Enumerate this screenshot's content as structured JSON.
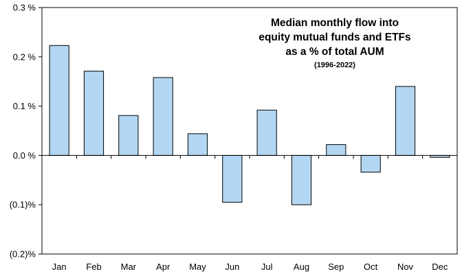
{
  "chart_data": {
    "type": "bar",
    "title_lines": [
      "Median monthly flow into",
      "equity mutual funds and ETFs",
      "as a % of total AUM"
    ],
    "subtitle": "(1996-2022)",
    "categories": [
      "Jan",
      "Feb",
      "Mar",
      "Apr",
      "May",
      "Jun",
      "Jul",
      "Aug",
      "Sep",
      "Oct",
      "Nov",
      "Dec"
    ],
    "values": [
      0.223,
      0.171,
      0.081,
      0.158,
      0.044,
      -0.095,
      0.092,
      -0.1,
      0.022,
      -0.034,
      0.14,
      -0.004
    ],
    "ylim": [
      -0.2,
      0.3
    ],
    "y_ticks": [
      0.3,
      0.2,
      0.1,
      0.0,
      -0.1,
      -0.2
    ],
    "y_tick_labels": [
      "0.3 %",
      "0.2 %",
      "0.1 %",
      "0.0 %",
      "(0.1)%",
      "(0.2)%"
    ],
    "xlabel": "",
    "ylabel": "",
    "grid": false,
    "bar_color": "#b3d7f2",
    "bar_edge_color": "#000000"
  }
}
